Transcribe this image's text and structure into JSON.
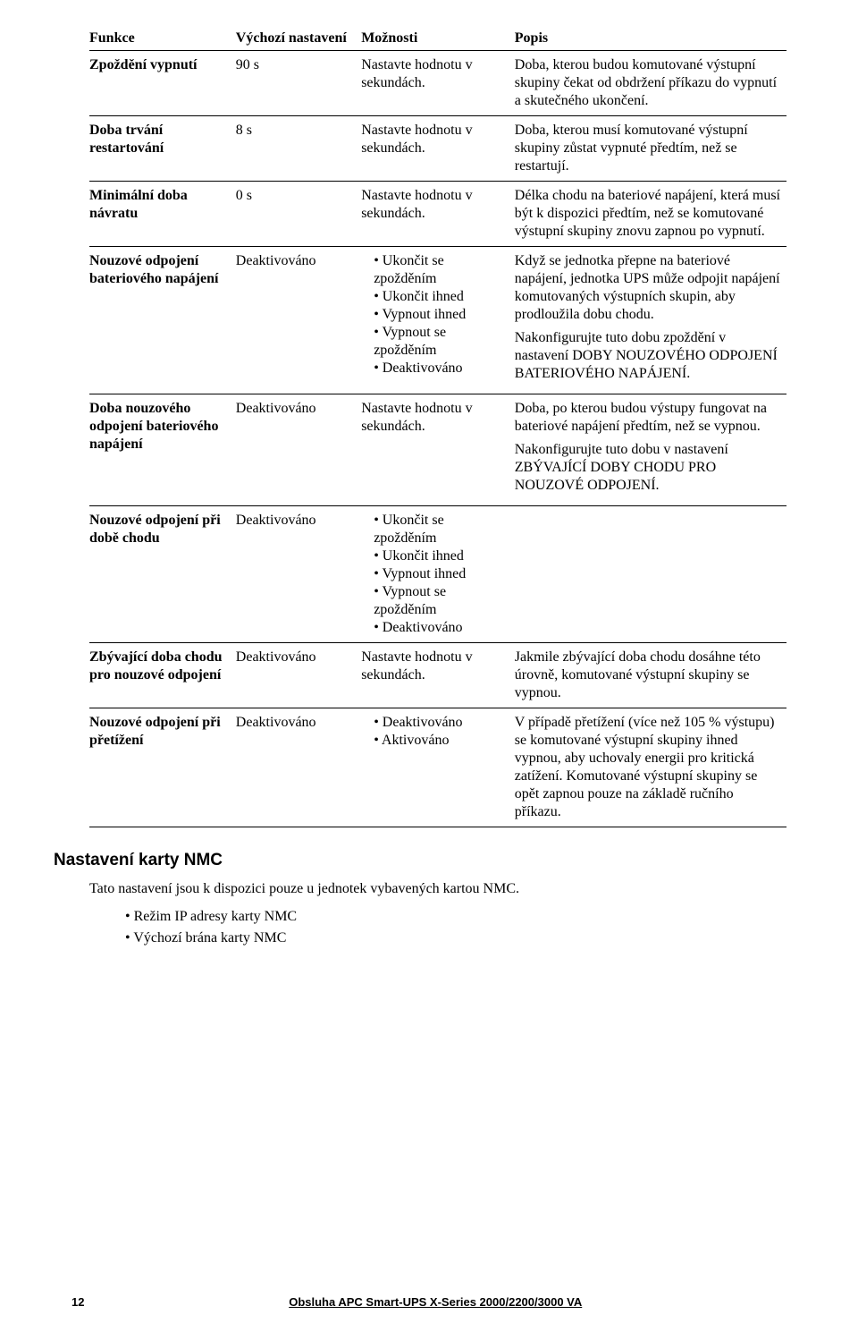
{
  "table": {
    "headers": [
      "Funkce",
      "Výchozí nastavení",
      "Možnosti",
      "Popis"
    ],
    "rows": [
      {
        "func": "Zpoždění vypnutí",
        "def": "90 s",
        "opt_text": "Nastavte hodnotu v sekundách.",
        "desc": "Doba, kterou budou komutované výstupní skupiny čekat od obdržení příkazu do vypnutí a skutečného ukončení."
      },
      {
        "func": "Doba trvání restartování",
        "def": "8 s",
        "opt_text": "Nastavte hodnotu v sekundách.",
        "desc": "Doba, kterou musí komutované výstupní skupiny zůstat vypnuté předtím, než se restartují."
      },
      {
        "func": "Minimální doba návratu",
        "def": "0 s",
        "opt_text": "Nastavte hodnotu v sekundách.",
        "desc": "Délka chodu na bateriové napájení, která musí být k dispozici předtím, než se komutované výstupní skupiny znovu zapnou po vypnutí."
      },
      {
        "func": "Nouzové odpojení bateriového napájení",
        "def": "Deaktivováno",
        "opt_list": [
          "Ukončit se zpožděním",
          "Ukončit ihned",
          "Vypnout ihned",
          "Vypnout se zpožděním",
          "Deaktivováno"
        ],
        "desc_paras": [
          "Když se jednotka přepne na bateriové napájení, jednotka UPS může odpojit napájení komutovaných výstupních skupin, aby prodloužila dobu chodu.",
          "Nakonfigurujte tuto dobu zpoždění v nastavení DOBY NOUZOVÉHO ODPOJENÍ BATERIOVÉHO NAPÁJENÍ."
        ]
      },
      {
        "func": "Doba nouzového odpojení bateriového napájení",
        "def": "Deaktivováno",
        "opt_text": "Nastavte hodnotu v sekundách.",
        "desc_paras": [
          "Doba, po kterou budou výstupy fungovat na bateriové napájení předtím, než se vypnou.",
          "Nakonfigurujte tuto dobu v nastavení ZBÝVAJÍCÍ DOBY CHODU PRO NOUZOVÉ ODPOJENÍ."
        ]
      },
      {
        "func": "Nouzové odpojení při době chodu",
        "def": "Deaktivováno",
        "opt_list": [
          "Ukončit se zpožděním",
          "Ukončit ihned",
          "Vypnout ihned",
          "Vypnout se zpožděním",
          "Deaktivováno"
        ],
        "desc": ""
      },
      {
        "func": "Zbývající doba chodu pro nouzové odpojení",
        "def": "Deaktivováno",
        "opt_text": "Nastavte hodnotu v sekundách.",
        "desc": "Jakmile zbývající doba chodu dosáhne této úrovně, komutované výstupní skupiny se vypnou."
      },
      {
        "func": "Nouzové odpojení při přetížení",
        "def": "Deaktivováno",
        "opt_list": [
          "Deaktivováno",
          "Aktivováno"
        ],
        "desc": "V případě přetížení (více než 105 % výstupu) se komutované výstupní skupiny ihned vypnou, aby uchovaly energii pro kritická zatížení. Komutované výstupní skupiny se opět zapnou pouze na základě ručního příkazu."
      }
    ]
  },
  "section_title": "Nastavení karty NMC",
  "body_text": "Tato nastavení jsou k dispozici pouze u jednotek vybavených kartou NMC.",
  "body_list": [
    "Režim IP adresy karty NMC",
    "Výchozí brána karty NMC"
  ],
  "footer": {
    "page": "12",
    "title": "Obsluha APC Smart-UPS X-Series 2000/2200/3000 VA"
  }
}
